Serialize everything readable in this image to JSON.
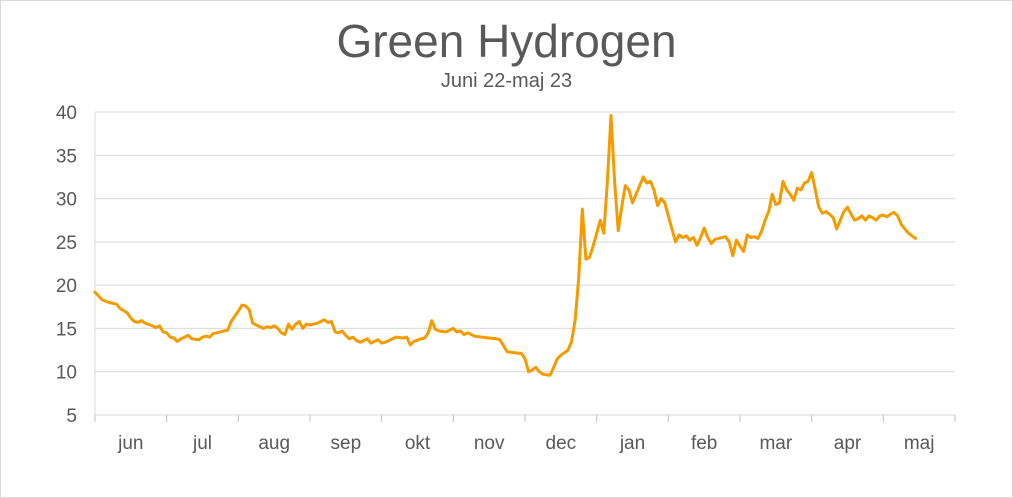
{
  "chart_data": {
    "type": "line",
    "title": "Green Hydrogen",
    "subtitle": "Juni 22-maj 23",
    "xlabel": "",
    "ylabel": "",
    "ylim": [
      5,
      40
    ],
    "yticks": [
      5,
      10,
      15,
      20,
      25,
      30,
      35,
      40
    ],
    "categories": [
      "jun",
      "jul",
      "aug",
      "sep",
      "okt",
      "nov",
      "dec",
      "jan",
      "feb",
      "mar",
      "apr",
      "maj"
    ],
    "grid": true,
    "legend": "none",
    "line_color": "#f59b00",
    "series": [
      {
        "name": "",
        "points": [
          [
            0.0,
            19.2
          ],
          [
            0.1,
            18.3
          ],
          [
            0.2,
            18.0
          ],
          [
            0.3,
            17.8
          ],
          [
            0.35,
            17.3
          ],
          [
            0.45,
            16.8
          ],
          [
            0.5,
            16.2
          ],
          [
            0.55,
            15.8
          ],
          [
            0.6,
            15.7
          ],
          [
            0.65,
            15.9
          ],
          [
            0.7,
            15.6
          ],
          [
            0.8,
            15.3
          ],
          [
            0.85,
            15.1
          ],
          [
            0.9,
            15.3
          ],
          [
            0.95,
            14.6
          ],
          [
            1.0,
            14.5
          ],
          [
            1.05,
            14.0
          ],
          [
            1.1,
            13.9
          ],
          [
            1.15,
            13.5
          ],
          [
            1.2,
            13.8
          ],
          [
            1.25,
            14.0
          ],
          [
            1.3,
            14.2
          ],
          [
            1.35,
            13.8
          ],
          [
            1.45,
            13.7
          ],
          [
            1.5,
            14.0
          ],
          [
            1.55,
            14.1
          ],
          [
            1.6,
            14.0
          ],
          [
            1.65,
            14.4
          ],
          [
            1.7,
            14.5
          ],
          [
            1.8,
            14.7
          ],
          [
            1.85,
            14.8
          ],
          [
            1.9,
            15.8
          ],
          [
            2.0,
            17.0
          ],
          [
            2.05,
            17.7
          ],
          [
            2.1,
            17.6
          ],
          [
            2.15,
            17.2
          ],
          [
            2.2,
            15.6
          ],
          [
            2.3,
            15.2
          ],
          [
            2.35,
            15.0
          ],
          [
            2.4,
            15.2
          ],
          [
            2.45,
            15.1
          ],
          [
            2.5,
            15.3
          ],
          [
            2.55,
            15.0
          ],
          [
            2.6,
            14.5
          ],
          [
            2.65,
            14.3
          ],
          [
            2.7,
            15.5
          ],
          [
            2.75,
            14.9
          ],
          [
            2.8,
            15.5
          ],
          [
            2.85,
            15.8
          ],
          [
            2.9,
            15.0
          ],
          [
            2.95,
            15.5
          ],
          [
            3.0,
            15.4
          ],
          [
            3.1,
            15.6
          ],
          [
            3.15,
            15.8
          ],
          [
            3.2,
            16.0
          ],
          [
            3.25,
            15.7
          ],
          [
            3.3,
            15.8
          ],
          [
            3.35,
            14.6
          ],
          [
            3.4,
            14.5
          ],
          [
            3.45,
            14.7
          ],
          [
            3.5,
            14.2
          ],
          [
            3.55,
            13.8
          ],
          [
            3.6,
            14.0
          ],
          [
            3.65,
            13.6
          ],
          [
            3.7,
            13.4
          ],
          [
            3.75,
            13.6
          ],
          [
            3.8,
            13.8
          ],
          [
            3.85,
            13.3
          ],
          [
            3.9,
            13.5
          ],
          [
            3.95,
            13.7
          ],
          [
            4.0,
            13.3
          ],
          [
            4.05,
            13.4
          ],
          [
            4.1,
            13.6
          ],
          [
            4.2,
            14.0
          ],
          [
            4.3,
            13.9
          ],
          [
            4.35,
            14.0
          ],
          [
            4.4,
            13.1
          ],
          [
            4.45,
            13.5
          ],
          [
            4.55,
            13.8
          ],
          [
            4.6,
            13.9
          ],
          [
            4.65,
            14.5
          ],
          [
            4.7,
            15.9
          ],
          [
            4.75,
            14.9
          ],
          [
            4.8,
            14.7
          ],
          [
            4.9,
            14.6
          ],
          [
            5.0,
            15.0
          ],
          [
            5.05,
            14.6
          ],
          [
            5.1,
            14.7
          ],
          [
            5.15,
            14.3
          ],
          [
            5.2,
            14.5
          ],
          [
            5.3,
            14.1
          ],
          [
            5.4,
            14.0
          ],
          [
            5.5,
            13.9
          ],
          [
            5.6,
            13.8
          ],
          [
            5.65,
            13.7
          ],
          [
            5.7,
            13.0
          ],
          [
            5.75,
            12.3
          ],
          [
            5.85,
            12.2
          ],
          [
            5.95,
            12.1
          ],
          [
            6.0,
            11.5
          ],
          [
            6.05,
            10.0
          ],
          [
            6.1,
            10.2
          ],
          [
            6.15,
            10.5
          ],
          [
            6.2,
            10.0
          ],
          [
            6.25,
            9.7
          ],
          [
            6.35,
            9.6
          ],
          [
            6.4,
            10.5
          ],
          [
            6.45,
            11.5
          ],
          [
            6.5,
            11.9
          ],
          [
            6.55,
            12.2
          ],
          [
            6.6,
            12.5
          ],
          [
            6.65,
            13.5
          ],
          [
            6.7,
            16.0
          ],
          [
            6.75,
            21.0
          ],
          [
            6.8,
            28.8
          ],
          [
            6.85,
            23.0
          ],
          [
            6.9,
            23.2
          ],
          [
            6.95,
            24.5
          ],
          [
            7.0,
            26.0
          ],
          [
            7.05,
            27.5
          ],
          [
            7.1,
            26.0
          ],
          [
            7.15,
            32.0
          ],
          [
            7.2,
            39.6
          ],
          [
            7.25,
            32.0
          ],
          [
            7.3,
            26.3
          ],
          [
            7.35,
            29.0
          ],
          [
            7.4,
            31.5
          ],
          [
            7.45,
            31.0
          ],
          [
            7.5,
            29.5
          ],
          [
            7.55,
            30.5
          ],
          [
            7.6,
            31.5
          ],
          [
            7.65,
            32.5
          ],
          [
            7.7,
            31.8
          ],
          [
            7.75,
            32.0
          ],
          [
            7.8,
            31.0
          ],
          [
            7.85,
            29.2
          ],
          [
            7.9,
            30.0
          ],
          [
            7.95,
            29.5
          ],
          [
            8.0,
            28.0
          ],
          [
            8.05,
            26.5
          ],
          [
            8.1,
            25.0
          ],
          [
            8.15,
            25.8
          ],
          [
            8.2,
            25.5
          ],
          [
            8.25,
            25.7
          ],
          [
            8.3,
            25.2
          ],
          [
            8.35,
            25.5
          ],
          [
            8.4,
            24.6
          ],
          [
            8.45,
            25.5
          ],
          [
            8.5,
            26.6
          ],
          [
            8.55,
            25.5
          ],
          [
            8.6,
            24.8
          ],
          [
            8.65,
            25.3
          ],
          [
            8.7,
            25.4
          ],
          [
            8.8,
            25.6
          ],
          [
            8.85,
            25.0
          ],
          [
            8.9,
            23.4
          ],
          [
            8.95,
            25.2
          ],
          [
            9.0,
            24.5
          ],
          [
            9.05,
            23.9
          ],
          [
            9.1,
            25.8
          ],
          [
            9.15,
            25.5
          ],
          [
            9.2,
            25.6
          ],
          [
            9.25,
            25.4
          ],
          [
            9.3,
            26.2
          ],
          [
            9.35,
            27.5
          ],
          [
            9.4,
            28.5
          ],
          [
            9.45,
            30.5
          ],
          [
            9.5,
            29.3
          ],
          [
            9.55,
            29.5
          ],
          [
            9.6,
            32.0
          ],
          [
            9.65,
            31.0
          ],
          [
            9.7,
            30.5
          ],
          [
            9.75,
            29.8
          ],
          [
            9.8,
            31.2
          ],
          [
            9.85,
            31.0
          ],
          [
            9.9,
            31.8
          ],
          [
            9.95,
            32.0
          ],
          [
            10.0,
            33.0
          ],
          [
            10.05,
            31.0
          ],
          [
            10.1,
            29.0
          ],
          [
            10.15,
            28.3
          ],
          [
            10.2,
            28.5
          ],
          [
            10.25,
            28.2
          ],
          [
            10.3,
            27.8
          ],
          [
            10.35,
            26.5
          ],
          [
            10.4,
            27.5
          ],
          [
            10.45,
            28.5
          ],
          [
            10.5,
            29.0
          ],
          [
            10.55,
            28.2
          ],
          [
            10.6,
            27.5
          ],
          [
            10.65,
            27.7
          ],
          [
            10.7,
            28.0
          ],
          [
            10.75,
            27.5
          ],
          [
            10.8,
            28.0
          ],
          [
            10.85,
            27.8
          ],
          [
            10.9,
            27.5
          ],
          [
            10.95,
            28.0
          ],
          [
            11.0,
            28.1
          ],
          [
            11.05,
            27.9
          ],
          [
            11.1,
            28.2
          ],
          [
            11.15,
            28.4
          ],
          [
            11.2,
            28.0
          ],
          [
            11.25,
            27.0
          ],
          [
            11.3,
            26.5
          ],
          [
            11.35,
            26.0
          ],
          [
            11.4,
            25.7
          ],
          [
            11.45,
            25.4
          ]
        ]
      }
    ]
  }
}
